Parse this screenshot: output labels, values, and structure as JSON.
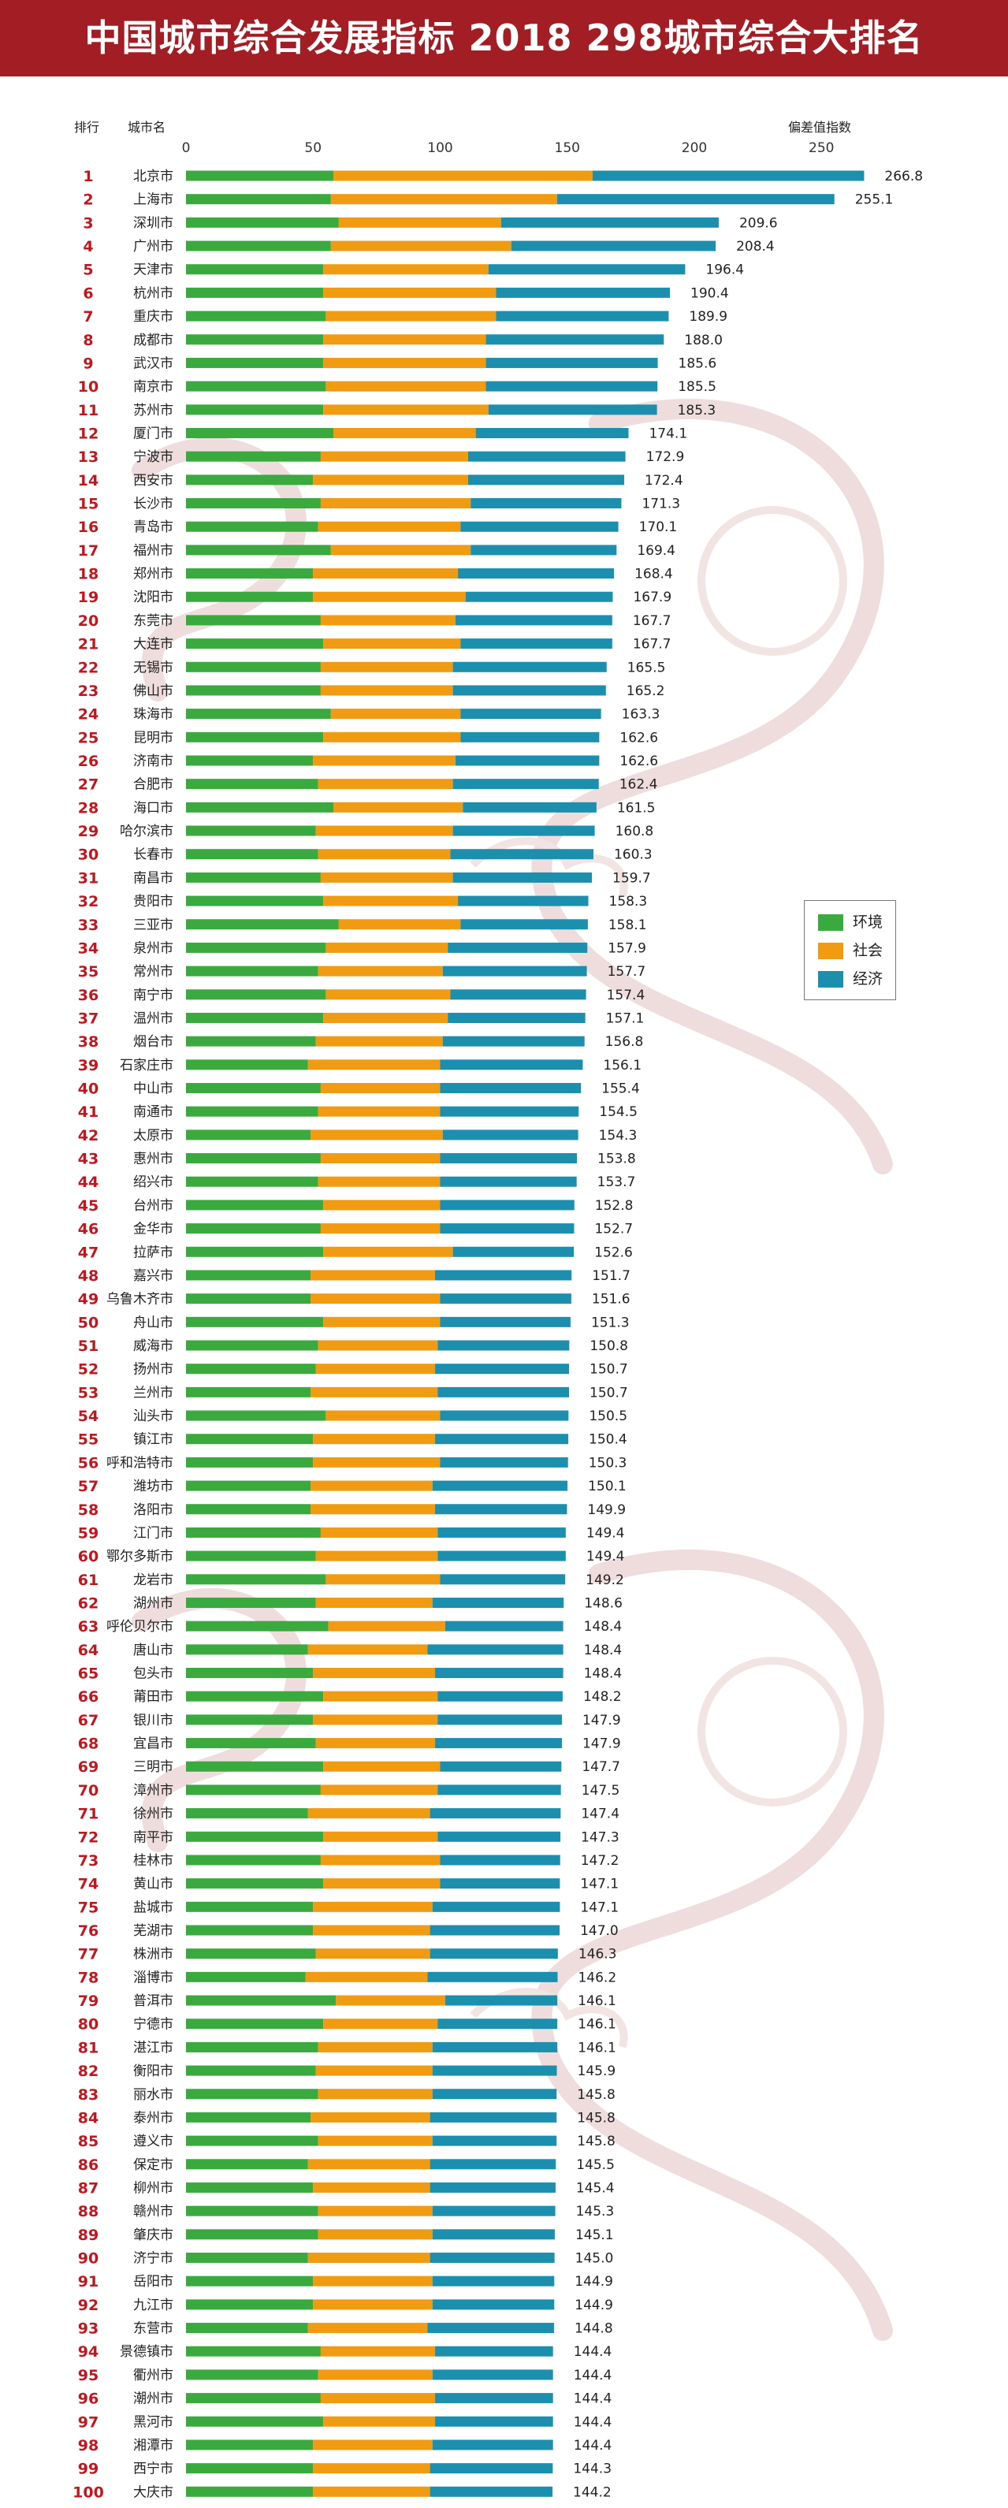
{
  "header": {
    "title": "中国城市综合发展指标 2018  298城市综合大排名"
  },
  "columns": {
    "rank_label": "排行",
    "city_label": "城市名",
    "value_label": "偏差值指数"
  },
  "colors": {
    "banner": "#a21d24",
    "environment": "#3aa93e",
    "society": "#f09b12",
    "economy": "#1b8fad",
    "rank_text": "#c0171f"
  },
  "legend": {
    "placement": "right-middle",
    "items": [
      {
        "name": "环境",
        "color": "#3aa93e"
      },
      {
        "name": "社会",
        "color": "#f09b12"
      },
      {
        "name": "经济",
        "color": "#1b8fad"
      }
    ]
  },
  "chart_data": {
    "type": "bar",
    "orientation": "horizontal",
    "stacked": true,
    "xlim": [
      0,
      270
    ],
    "xticks": [
      0,
      50,
      100,
      150,
      200,
      250
    ],
    "grid": false,
    "series_names": [
      "环境",
      "社会",
      "经济"
    ],
    "rows": [
      {
        "rank": "1",
        "city": "北京市",
        "total": "266.8",
        "env": 58,
        "soc": 102
      },
      {
        "rank": "2",
        "city": "上海市",
        "total": "255.1",
        "env": 57,
        "soc": 89
      },
      {
        "rank": "3",
        "city": "深圳市",
        "total": "209.6",
        "env": 60,
        "soc": 64
      },
      {
        "rank": "4",
        "city": "广州市",
        "total": "208.4",
        "env": 57,
        "soc": 71
      },
      {
        "rank": "5",
        "city": "天津市",
        "total": "196.4",
        "env": 54,
        "soc": 65
      },
      {
        "rank": "6",
        "city": "杭州市",
        "total": "190.4",
        "env": 54,
        "soc": 68
      },
      {
        "rank": "7",
        "city": "重庆市",
        "total": "189.9",
        "env": 55,
        "soc": 67
      },
      {
        "rank": "8",
        "city": "成都市",
        "total": "188.0",
        "env": 54,
        "soc": 64
      },
      {
        "rank": "9",
        "city": "武汉市",
        "total": "185.6",
        "env": 54,
        "soc": 64
      },
      {
        "rank": "10",
        "city": "南京市",
        "total": "185.5",
        "env": 55,
        "soc": 63
      },
      {
        "rank": "11",
        "city": "苏州市",
        "total": "185.3",
        "env": 54,
        "soc": 65
      },
      {
        "rank": "12",
        "city": "厦门市",
        "total": "174.1",
        "env": 58,
        "soc": 56
      },
      {
        "rank": "13",
        "city": "宁波市",
        "total": "172.9",
        "env": 53,
        "soc": 58
      },
      {
        "rank": "14",
        "city": "西安市",
        "total": "172.4",
        "env": 50,
        "soc": 61
      },
      {
        "rank": "15",
        "city": "长沙市",
        "total": "171.3",
        "env": 53,
        "soc": 59
      },
      {
        "rank": "16",
        "city": "青岛市",
        "total": "170.1",
        "env": 52,
        "soc": 56
      },
      {
        "rank": "17",
        "city": "福州市",
        "total": "169.4",
        "env": 57,
        "soc": 55
      },
      {
        "rank": "18",
        "city": "郑州市",
        "total": "168.4",
        "env": 50,
        "soc": 57
      },
      {
        "rank": "19",
        "city": "沈阳市",
        "total": "167.9",
        "env": 50,
        "soc": 60
      },
      {
        "rank": "20",
        "city": "东莞市",
        "total": "167.7",
        "env": 53,
        "soc": 53
      },
      {
        "rank": "21",
        "city": "大连市",
        "total": "167.7",
        "env": 54,
        "soc": 54
      },
      {
        "rank": "22",
        "city": "无锡市",
        "total": "165.5",
        "env": 53,
        "soc": 52
      },
      {
        "rank": "23",
        "city": "佛山市",
        "total": "165.2",
        "env": 53,
        "soc": 52
      },
      {
        "rank": "24",
        "city": "珠海市",
        "total": "163.3",
        "env": 57,
        "soc": 51
      },
      {
        "rank": "25",
        "city": "昆明市",
        "total": "162.6",
        "env": 54,
        "soc": 54
      },
      {
        "rank": "26",
        "city": "济南市",
        "total": "162.6",
        "env": 50,
        "soc": 56
      },
      {
        "rank": "27",
        "city": "合肥市",
        "total": "162.4",
        "env": 52,
        "soc": 53
      },
      {
        "rank": "28",
        "city": "海口市",
        "total": "161.5",
        "env": 58,
        "soc": 51
      },
      {
        "rank": "29",
        "city": "哈尔滨市",
        "total": "160.8",
        "env": 51,
        "soc": 54
      },
      {
        "rank": "30",
        "city": "长春市",
        "total": "160.3",
        "env": 52,
        "soc": 52
      },
      {
        "rank": "31",
        "city": "南昌市",
        "total": "159.7",
        "env": 53,
        "soc": 52
      },
      {
        "rank": "32",
        "city": "贵阳市",
        "total": "158.3",
        "env": 54,
        "soc": 53
      },
      {
        "rank": "33",
        "city": "三亚市",
        "total": "158.1",
        "env": 60,
        "soc": 48
      },
      {
        "rank": "34",
        "city": "泉州市",
        "total": "157.9",
        "env": 55,
        "soc": 48
      },
      {
        "rank": "35",
        "city": "常州市",
        "total": "157.7",
        "env": 52,
        "soc": 49
      },
      {
        "rank": "36",
        "city": "南宁市",
        "total": "157.4",
        "env": 55,
        "soc": 49
      },
      {
        "rank": "37",
        "city": "温州市",
        "total": "157.1",
        "env": 54,
        "soc": 49
      },
      {
        "rank": "38",
        "city": "烟台市",
        "total": "156.8",
        "env": 51,
        "soc": 50
      },
      {
        "rank": "39",
        "city": "石家庄市",
        "total": "156.1",
        "env": 48,
        "soc": 52
      },
      {
        "rank": "40",
        "city": "中山市",
        "total": "155.4",
        "env": 53,
        "soc": 47
      },
      {
        "rank": "41",
        "city": "南通市",
        "total": "154.5",
        "env": 52,
        "soc": 48
      },
      {
        "rank": "42",
        "city": "太原市",
        "total": "154.3",
        "env": 49,
        "soc": 52
      },
      {
        "rank": "43",
        "city": "惠州市",
        "total": "153.8",
        "env": 53,
        "soc": 47
      },
      {
        "rank": "44",
        "city": "绍兴市",
        "total": "153.7",
        "env": 52,
        "soc": 48
      },
      {
        "rank": "45",
        "city": "台州市",
        "total": "152.8",
        "env": 54,
        "soc": 46
      },
      {
        "rank": "46",
        "city": "金华市",
        "total": "152.7",
        "env": 53,
        "soc": 47
      },
      {
        "rank": "47",
        "city": "拉萨市",
        "total": "152.6",
        "env": 54,
        "soc": 51
      },
      {
        "rank": "48",
        "city": "嘉兴市",
        "total": "151.7",
        "env": 49,
        "soc": 49
      },
      {
        "rank": "49",
        "city": "乌鲁木齐市",
        "total": "151.6",
        "env": 49,
        "soc": 51
      },
      {
        "rank": "50",
        "city": "舟山市",
        "total": "151.3",
        "env": 54,
        "soc": 46
      },
      {
        "rank": "51",
        "city": "威海市",
        "total": "150.8",
        "env": 52,
        "soc": 47
      },
      {
        "rank": "52",
        "city": "扬州市",
        "total": "150.7",
        "env": 51,
        "soc": 47
      },
      {
        "rank": "53",
        "city": "兰州市",
        "total": "150.7",
        "env": 49,
        "soc": 50
      },
      {
        "rank": "54",
        "city": "汕头市",
        "total": "150.5",
        "env": 55,
        "soc": 45
      },
      {
        "rank": "55",
        "city": "镇江市",
        "total": "150.4",
        "env": 50,
        "soc": 48
      },
      {
        "rank": "56",
        "city": "呼和浩特市",
        "total": "150.3",
        "env": 50,
        "soc": 50
      },
      {
        "rank": "57",
        "city": "潍坊市",
        "total": "150.1",
        "env": 49,
        "soc": 48
      },
      {
        "rank": "58",
        "city": "洛阳市",
        "total": "149.9",
        "env": 49,
        "soc": 49
      },
      {
        "rank": "59",
        "city": "江门市",
        "total": "149.4",
        "env": 53,
        "soc": 46
      },
      {
        "rank": "60",
        "city": "鄂尔多斯市",
        "total": "149.4",
        "env": 51,
        "soc": 48
      },
      {
        "rank": "61",
        "city": "龙岩市",
        "total": "149.2",
        "env": 55,
        "soc": 45
      },
      {
        "rank": "62",
        "city": "湖州市",
        "total": "148.6",
        "env": 51,
        "soc": 46
      },
      {
        "rank": "63",
        "city": "呼伦贝尔市",
        "total": "148.4",
        "env": 56,
        "soc": 46
      },
      {
        "rank": "64",
        "city": "唐山市",
        "total": "148.4",
        "env": 48,
        "soc": 47
      },
      {
        "rank": "65",
        "city": "包头市",
        "total": "148.4",
        "env": 50,
        "soc": 48
      },
      {
        "rank": "66",
        "city": "莆田市",
        "total": "148.2",
        "env": 54,
        "soc": 45
      },
      {
        "rank": "67",
        "city": "银川市",
        "total": "147.9",
        "env": 50,
        "soc": 49
      },
      {
        "rank": "68",
        "city": "宜昌市",
        "total": "147.9",
        "env": 51,
        "soc": 47
      },
      {
        "rank": "69",
        "city": "三明市",
        "total": "147.7",
        "env": 54,
        "soc": 46
      },
      {
        "rank": "70",
        "city": "漳州市",
        "total": "147.5",
        "env": 53,
        "soc": 46
      },
      {
        "rank": "71",
        "city": "徐州市",
        "total": "147.4",
        "env": 48,
        "soc": 48
      },
      {
        "rank": "72",
        "city": "南平市",
        "total": "147.3",
        "env": 54,
        "soc": 45
      },
      {
        "rank": "73",
        "city": "桂林市",
        "total": "147.2",
        "env": 53,
        "soc": 47
      },
      {
        "rank": "74",
        "city": "黄山市",
        "total": "147.1",
        "env": 54,
        "soc": 46
      },
      {
        "rank": "75",
        "city": "盐城市",
        "total": "147.1",
        "env": 50,
        "soc": 47
      },
      {
        "rank": "76",
        "city": "芜湖市",
        "total": "147.0",
        "env": 50,
        "soc": 46
      },
      {
        "rank": "77",
        "city": "株洲市",
        "total": "146.3",
        "env": 51,
        "soc": 45
      },
      {
        "rank": "78",
        "city": "淄博市",
        "total": "146.2",
        "env": 47,
        "soc": 48
      },
      {
        "rank": "79",
        "city": "普洱市",
        "total": "146.1",
        "env": 59,
        "soc": 43
      },
      {
        "rank": "80",
        "city": "宁德市",
        "total": "146.1",
        "env": 54,
        "soc": 45
      },
      {
        "rank": "81",
        "city": "湛江市",
        "total": "146.1",
        "env": 52,
        "soc": 45
      },
      {
        "rank": "82",
        "city": "衡阳市",
        "total": "145.9",
        "env": 51,
        "soc": 46
      },
      {
        "rank": "83",
        "city": "丽水市",
        "total": "145.8",
        "env": 52,
        "soc": 45
      },
      {
        "rank": "84",
        "city": "泰州市",
        "total": "145.8",
        "env": 49,
        "soc": 47
      },
      {
        "rank": "85",
        "city": "遵义市",
        "total": "145.8",
        "env": 52,
        "soc": 45
      },
      {
        "rank": "86",
        "city": "保定市",
        "total": "145.5",
        "env": 48,
        "soc": 48
      },
      {
        "rank": "87",
        "city": "柳州市",
        "total": "145.4",
        "env": 50,
        "soc": 46
      },
      {
        "rank": "88",
        "city": "赣州市",
        "total": "145.3",
        "env": 52,
        "soc": 45
      },
      {
        "rank": "89",
        "city": "肇庆市",
        "total": "145.1",
        "env": 52,
        "soc": 45
      },
      {
        "rank": "90",
        "city": "济宁市",
        "total": "145.0",
        "env": 48,
        "soc": 48
      },
      {
        "rank": "91",
        "city": "岳阳市",
        "total": "144.9",
        "env": 50,
        "soc": 47
      },
      {
        "rank": "92",
        "city": "九江市",
        "total": "144.9",
        "env": 50,
        "soc": 47
      },
      {
        "rank": "93",
        "city": "东营市",
        "total": "144.8",
        "env": 48,
        "soc": 47
      },
      {
        "rank": "94",
        "city": "景德镇市",
        "total": "144.4",
        "env": 53,
        "soc": 45
      },
      {
        "rank": "95",
        "city": "衢州市",
        "total": "144.4",
        "env": 52,
        "soc": 45
      },
      {
        "rank": "96",
        "city": "潮州市",
        "total": "144.4",
        "env": 53,
        "soc": 45
      },
      {
        "rank": "97",
        "city": "黑河市",
        "total": "144.4",
        "env": 54,
        "soc": 44
      },
      {
        "rank": "98",
        "city": "湘潭市",
        "total": "144.4",
        "env": 50,
        "soc": 47
      },
      {
        "rank": "99",
        "city": "西宁市",
        "total": "144.3",
        "env": 50,
        "soc": 46
      },
      {
        "rank": "100",
        "city": "大庆市",
        "total": "144.2",
        "env": 50,
        "soc": 46
      }
    ]
  }
}
